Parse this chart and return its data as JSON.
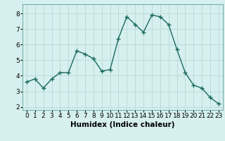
{
  "x": [
    0,
    1,
    2,
    3,
    4,
    5,
    6,
    7,
    8,
    9,
    10,
    11,
    12,
    13,
    14,
    15,
    16,
    17,
    18,
    19,
    20,
    21,
    22,
    23
  ],
  "y": [
    3.6,
    3.8,
    3.2,
    3.8,
    4.2,
    4.2,
    5.6,
    5.4,
    5.1,
    4.3,
    4.4,
    6.4,
    7.8,
    7.3,
    6.8,
    7.9,
    7.8,
    7.3,
    5.7,
    4.2,
    3.4,
    3.2,
    2.6,
    2.2
  ],
  "line_color": "#1a6b5a",
  "marker": "+",
  "marker_size": 4,
  "line_width": 1.0,
  "bg_color": "#d6f0ef",
  "grid_color": "#b8d8d6",
  "xlabel": "Humidex (Indice chaleur)",
  "xlabel_fontsize": 7.5,
  "xtick_labels": [
    "0",
    "1",
    "2",
    "3",
    "4",
    "5",
    "6",
    "7",
    "8",
    "9",
    "10",
    "11",
    "12",
    "13",
    "14",
    "15",
    "16",
    "17",
    "18",
    "19",
    "20",
    "21",
    "22",
    "23"
  ],
  "ytick_labels": [
    "2",
    "3",
    "4",
    "5",
    "6",
    "7",
    "8"
  ],
  "ylim": [
    1.8,
    8.6
  ],
  "xlim": [
    -0.5,
    23.5
  ],
  "tick_fontsize": 6.5
}
